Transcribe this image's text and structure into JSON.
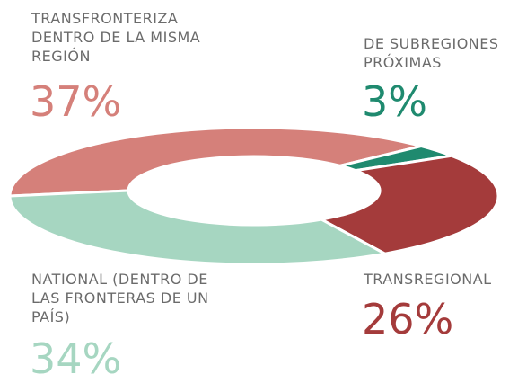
{
  "chart_data": {
    "type": "donut",
    "categories": [
      "TRANSFRONTERIZA DENTRO DE LA MISMA REGIÓN",
      "DE SUBREGIONES PRÓXIMAS",
      "TRANSREGIONAL",
      "NATIONAL (DENTRO DE LAS FRONTERAS DE UN PAÍS)"
    ],
    "values": [
      37,
      3,
      26,
      34
    ],
    "value_labels": [
      "37%",
      "3%",
      "26%",
      "34%"
    ],
    "colors": [
      "#d5807a",
      "#1f8a6f",
      "#a43b3b",
      "#a6d6c1"
    ]
  }
}
